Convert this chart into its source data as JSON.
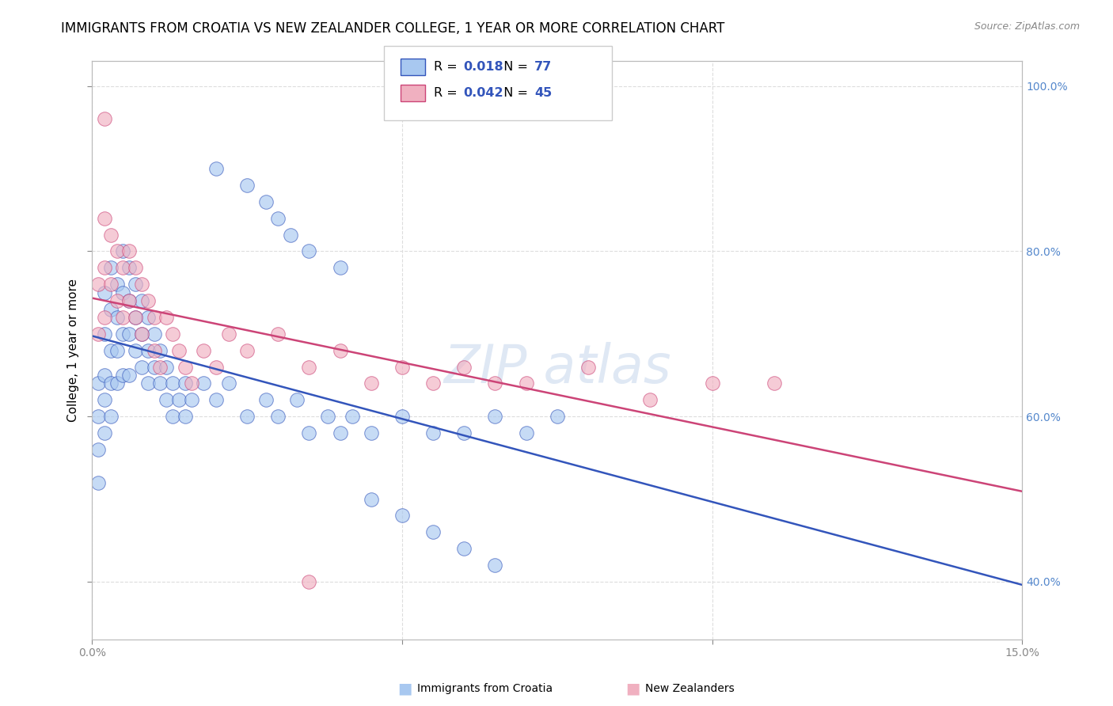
{
  "title": "IMMIGRANTS FROM CROATIA VS NEW ZEALANDER COLLEGE, 1 YEAR OR MORE CORRELATION CHART",
  "source": "Source: ZipAtlas.com",
  "ylabel": "College, 1 year or more",
  "xlim": [
    0.0,
    0.15
  ],
  "ylim": [
    0.33,
    1.03
  ],
  "xticks": [
    0.0,
    0.05,
    0.1,
    0.15
  ],
  "xticklabels": [
    "0.0%",
    "",
    "",
    "15.0%"
  ],
  "yticks_right": [
    0.4,
    0.6,
    0.8,
    1.0
  ],
  "yticklabels_right": [
    "40.0%",
    "60.0%",
    "80.0%",
    "100.0%"
  ],
  "legend_r_blue": "0.018",
  "legend_n_blue": "77",
  "legend_r_pink": "0.042",
  "legend_n_pink": "45",
  "blue_color": "#a8c8f0",
  "pink_color": "#f0b0c0",
  "trend_blue": "#3355bb",
  "trend_pink": "#cc4477",
  "watermark": "ZIPatlas",
  "blue_scatter_x": [
    0.001,
    0.001,
    0.001,
    0.001,
    0.002,
    0.002,
    0.002,
    0.002,
    0.002,
    0.003,
    0.003,
    0.003,
    0.003,
    0.003,
    0.004,
    0.004,
    0.004,
    0.004,
    0.005,
    0.005,
    0.005,
    0.005,
    0.006,
    0.006,
    0.006,
    0.006,
    0.007,
    0.007,
    0.007,
    0.008,
    0.008,
    0.008,
    0.009,
    0.009,
    0.009,
    0.01,
    0.01,
    0.011,
    0.011,
    0.012,
    0.012,
    0.013,
    0.013,
    0.014,
    0.015,
    0.015,
    0.016,
    0.018,
    0.02,
    0.022,
    0.025,
    0.028,
    0.03,
    0.033,
    0.035,
    0.038,
    0.04,
    0.042,
    0.045,
    0.05,
    0.055,
    0.06,
    0.065,
    0.07,
    0.075,
    0.02,
    0.025,
    0.028,
    0.03,
    0.032,
    0.035,
    0.04,
    0.045,
    0.05,
    0.055,
    0.06,
    0.065
  ],
  "blue_scatter_y": [
    0.64,
    0.6,
    0.56,
    0.52,
    0.75,
    0.7,
    0.65,
    0.62,
    0.58,
    0.78,
    0.73,
    0.68,
    0.64,
    0.6,
    0.76,
    0.72,
    0.68,
    0.64,
    0.8,
    0.75,
    0.7,
    0.65,
    0.78,
    0.74,
    0.7,
    0.65,
    0.76,
    0.72,
    0.68,
    0.74,
    0.7,
    0.66,
    0.72,
    0.68,
    0.64,
    0.7,
    0.66,
    0.68,
    0.64,
    0.66,
    0.62,
    0.64,
    0.6,
    0.62,
    0.64,
    0.6,
    0.62,
    0.64,
    0.62,
    0.64,
    0.6,
    0.62,
    0.6,
    0.62,
    0.58,
    0.6,
    0.58,
    0.6,
    0.58,
    0.6,
    0.58,
    0.58,
    0.6,
    0.58,
    0.6,
    0.9,
    0.88,
    0.86,
    0.84,
    0.82,
    0.8,
    0.78,
    0.5,
    0.48,
    0.46,
    0.44,
    0.42
  ],
  "pink_scatter_x": [
    0.001,
    0.001,
    0.002,
    0.002,
    0.002,
    0.003,
    0.003,
    0.004,
    0.004,
    0.005,
    0.005,
    0.006,
    0.006,
    0.007,
    0.007,
    0.008,
    0.008,
    0.009,
    0.01,
    0.01,
    0.011,
    0.012,
    0.013,
    0.014,
    0.015,
    0.016,
    0.018,
    0.02,
    0.022,
    0.025,
    0.03,
    0.035,
    0.04,
    0.045,
    0.05,
    0.055,
    0.06,
    0.065,
    0.07,
    0.08,
    0.09,
    0.1,
    0.11,
    0.002,
    0.035
  ],
  "pink_scatter_y": [
    0.76,
    0.7,
    0.84,
    0.78,
    0.72,
    0.82,
    0.76,
    0.8,
    0.74,
    0.78,
    0.72,
    0.8,
    0.74,
    0.78,
    0.72,
    0.76,
    0.7,
    0.74,
    0.72,
    0.68,
    0.66,
    0.72,
    0.7,
    0.68,
    0.66,
    0.64,
    0.68,
    0.66,
    0.7,
    0.68,
    0.7,
    0.66,
    0.68,
    0.64,
    0.66,
    0.64,
    0.66,
    0.64,
    0.64,
    0.66,
    0.62,
    0.64,
    0.64,
    0.96,
    0.4
  ],
  "background_color": "#ffffff",
  "grid_color": "#dddddd",
  "title_fontsize": 12,
  "axis_label_fontsize": 11,
  "tick_fontsize": 10,
  "tick_color": "#5588cc"
}
